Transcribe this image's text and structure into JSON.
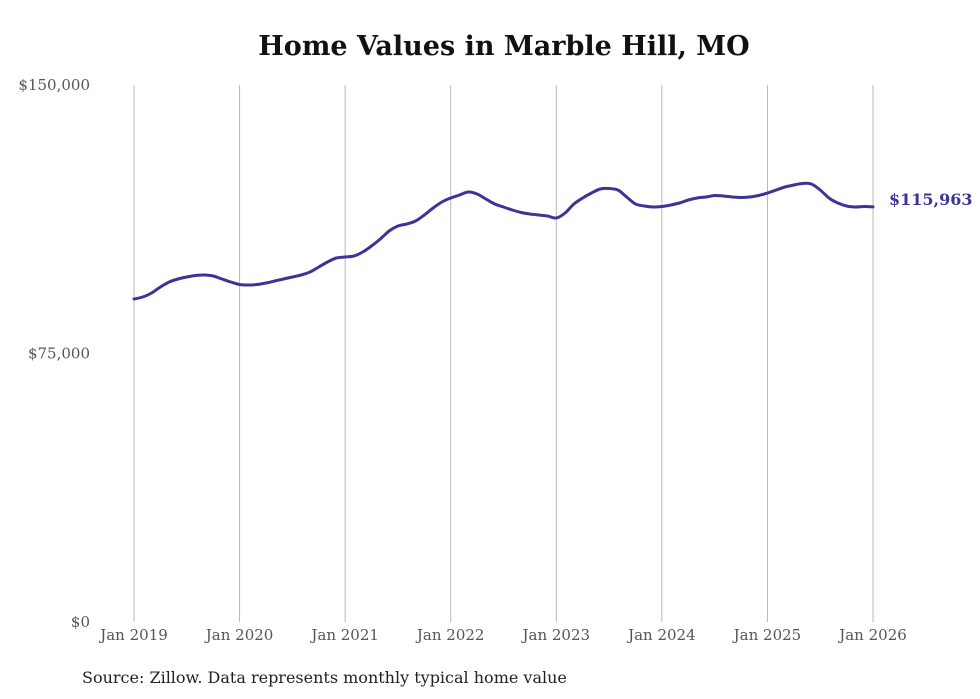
{
  "chart_data": {
    "type": "line",
    "title": "Home Values in Marble Hill, MO",
    "xlabel": "",
    "ylabel": "",
    "ylim": [
      0,
      150000
    ],
    "yticks": [
      0,
      75000,
      150000
    ],
    "ytick_labels": [
      "$0",
      "$75,000",
      "$150,000"
    ],
    "xticks": [
      "Jan 2019",
      "Jan 2020",
      "Jan 2021",
      "Jan 2022",
      "Jan 2023",
      "Jan 2024",
      "Jan 2025",
      "Jan 2026"
    ],
    "x_start": "Jan 2019",
    "x_end": "Jan 2026",
    "frequency": "monthly",
    "grid": "vertical",
    "series": [
      {
        "name": "Typical home value",
        "color": "#3b3596",
        "values": [
          90220,
          90780,
          91900,
          93580,
          94970,
          95810,
          96370,
          96790,
          96930,
          96650,
          95810,
          94970,
          94270,
          94130,
          94270,
          94690,
          95250,
          95810,
          96370,
          96930,
          97770,
          99160,
          100560,
          101680,
          101960,
          102230,
          103350,
          105030,
          106980,
          109220,
          110610,
          111170,
          112010,
          113690,
          115640,
          117320,
          118430,
          119270,
          120110,
          119550,
          118160,
          116760,
          115920,
          115080,
          114390,
          113970,
          113690,
          113410,
          112850,
          114250,
          116760,
          118430,
          119830,
          120950,
          121090,
          120670,
          118720,
          116760,
          116200,
          115920,
          116060,
          116480,
          117040,
          117880,
          118430,
          118720,
          119130,
          118990,
          118720,
          118580,
          118720,
          119130,
          119830,
          120670,
          121510,
          122070,
          122490,
          122350,
          120670,
          118430,
          117040,
          116200,
          115920,
          116060,
          115963
        ]
      }
    ],
    "end_label": "$115,963"
  },
  "source_note": "Source: Zillow. Data represents monthly typical home value"
}
